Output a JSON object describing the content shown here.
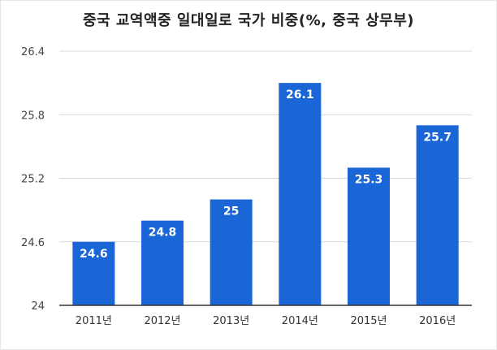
{
  "chart_data": {
    "type": "bar",
    "title": "중국 교역액중 일대일로 국가 비중(%, 중국 상무부)",
    "categories": [
      "2011년",
      "2012년",
      "2013년",
      "2014년",
      "2015년",
      "2016년"
    ],
    "values": [
      24.6,
      24.8,
      25,
      26.1,
      25.3,
      25.7
    ],
    "data_labels": [
      "24.6",
      "24.8",
      "25",
      "26.1",
      "25.3",
      "25.7"
    ],
    "y_ticks": [
      "24",
      "24.6",
      "25.2",
      "25.8",
      "26.4"
    ],
    "ylim": [
      24,
      26.4
    ],
    "xlabel": "",
    "ylabel": "",
    "grid": true,
    "legend": "none",
    "bar_color": "#1a66d6",
    "grid_color": "#d9d9d9",
    "axis_color": "#333333"
  }
}
